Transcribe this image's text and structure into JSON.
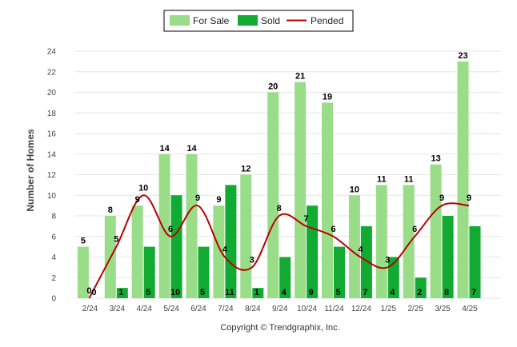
{
  "chart_data": {
    "type": "bar",
    "categories": [
      "2/24",
      "3/24",
      "4/24",
      "5/24",
      "6/24",
      "7/24",
      "8/24",
      "9/24",
      "10/24",
      "11/24",
      "12/24",
      "1/25",
      "2/25",
      "3/25",
      "4/25"
    ],
    "series": [
      {
        "name": "For Sale",
        "type": "bar",
        "color": "#99dd88",
        "values": [
          5,
          8,
          9,
          14,
          14,
          9,
          12,
          20,
          21,
          19,
          10,
          11,
          11,
          13,
          23
        ]
      },
      {
        "name": "Sold",
        "type": "bar",
        "color": "#11aa33",
        "values": [
          0,
          1,
          5,
          10,
          5,
          11,
          1,
          4,
          9,
          5,
          7,
          4,
          2,
          8,
          7
        ]
      },
      {
        "name": "Pended",
        "type": "line",
        "color": "#bb0000",
        "values": [
          0,
          5,
          10,
          6,
          9,
          4,
          3,
          8,
          7,
          6,
          4,
          3,
          6,
          9,
          9
        ]
      }
    ],
    "ylabel": "Number of Homes",
    "xlabel": "",
    "ylim": [
      0,
      24
    ],
    "yticks": [
      0,
      2,
      4,
      6,
      8,
      10,
      12,
      14,
      16,
      18,
      20,
      22,
      24
    ],
    "grid": true,
    "legend_position": "top-center"
  },
  "footer": "Copyright © Trendgraphix, Inc."
}
